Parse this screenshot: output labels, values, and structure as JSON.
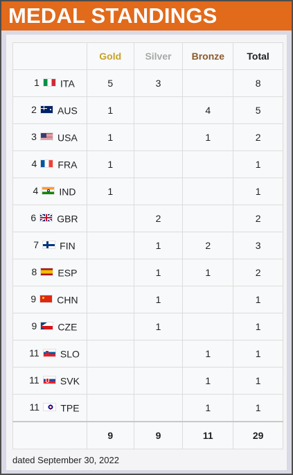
{
  "header": {
    "title": "MEDAL STANDINGS"
  },
  "columns": {
    "gold": "Gold",
    "silver": "Silver",
    "bronze": "Bronze",
    "total": "Total"
  },
  "rows": [
    {
      "rank": "1",
      "flag": "italy-flag-icon",
      "code": "ITA",
      "gold": "5",
      "silver": "3",
      "bronze": "",
      "total": "8"
    },
    {
      "rank": "2",
      "flag": "australia-flag-icon",
      "code": "AUS",
      "gold": "1",
      "silver": "",
      "bronze": "4",
      "total": "5"
    },
    {
      "rank": "3",
      "flag": "usa-flag-icon",
      "code": "USA",
      "gold": "1",
      "silver": "",
      "bronze": "1",
      "total": "2"
    },
    {
      "rank": "4",
      "flag": "france-flag-icon",
      "code": "FRA",
      "gold": "1",
      "silver": "",
      "bronze": "",
      "total": "1"
    },
    {
      "rank": "4",
      "flag": "india-flag-icon",
      "code": "IND",
      "gold": "1",
      "silver": "",
      "bronze": "",
      "total": "1"
    },
    {
      "rank": "6",
      "flag": "great-britain-flag-icon",
      "code": "GBR",
      "gold": "",
      "silver": "2",
      "bronze": "",
      "total": "2"
    },
    {
      "rank": "7",
      "flag": "finland-flag-icon",
      "code": "FIN",
      "gold": "",
      "silver": "1",
      "bronze": "2",
      "total": "3"
    },
    {
      "rank": "8",
      "flag": "spain-flag-icon",
      "code": "ESP",
      "gold": "",
      "silver": "1",
      "bronze": "1",
      "total": "2"
    },
    {
      "rank": "9",
      "flag": "china-flag-icon",
      "code": "CHN",
      "gold": "",
      "silver": "1",
      "bronze": "",
      "total": "1"
    },
    {
      "rank": "9",
      "flag": "czech-flag-icon",
      "code": "CZE",
      "gold": "",
      "silver": "1",
      "bronze": "",
      "total": "1"
    },
    {
      "rank": "11",
      "flag": "slovenia-flag-icon",
      "code": "SLO",
      "gold": "",
      "silver": "",
      "bronze": "1",
      "total": "1"
    },
    {
      "rank": "11",
      "flag": "slovakia-flag-icon",
      "code": "SVK",
      "gold": "",
      "silver": "",
      "bronze": "1",
      "total": "1"
    },
    {
      "rank": "11",
      "flag": "chinese-taipei-flag-icon",
      "code": "TPE",
      "gold": "",
      "silver": "",
      "bronze": "1",
      "total": "1"
    }
  ],
  "totals": {
    "gold": "9",
    "silver": "9",
    "bronze": "11",
    "total": "29"
  },
  "footer": {
    "dated": "dated September 30, 2022"
  },
  "colors": {
    "header_bg": "#e26a1b",
    "gold": "#c9a227",
    "silver": "#a8a8a8",
    "bronze": "#8b5a2b"
  }
}
